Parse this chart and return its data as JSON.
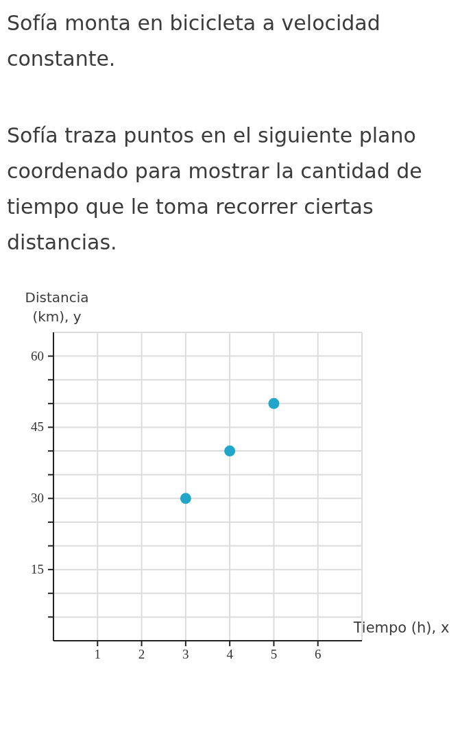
{
  "chart_data": {
    "type": "scatter",
    "title": "Sofía monta en bicicleta a velocidad constante.",
    "subtitle": "Sofía traza puntos en el siguiente plano coordenado para mostrar la cantidad de tiempo que le toma recorrer ciertas distancias.",
    "xlabel": "Tiempo (h), x",
    "ylabel": "Distancia (km), y",
    "x": [
      3,
      4,
      5
    ],
    "series": [
      {
        "color": "#1fa6c9",
        "values": [
          30,
          40,
          50
        ]
      }
    ],
    "xlim": [
      0,
      7
    ],
    "xticks": [
      1,
      2,
      3,
      4,
      5,
      6
    ],
    "ylim": [
      0,
      65
    ],
    "yticks": [
      {
        "value": 5,
        "label": null
      },
      {
        "value": 10,
        "label": null
      },
      15,
      {
        "value": 20,
        "label": null
      },
      {
        "value": 25,
        "label": null
      },
      30,
      {
        "value": 35,
        "label": null
      },
      {
        "value": 40,
        "label": null
      },
      45,
      {
        "value": 50,
        "label": null
      },
      {
        "value": 55,
        "label": null
      },
      60
    ],
    "grid": true,
    "marker": "circle"
  }
}
